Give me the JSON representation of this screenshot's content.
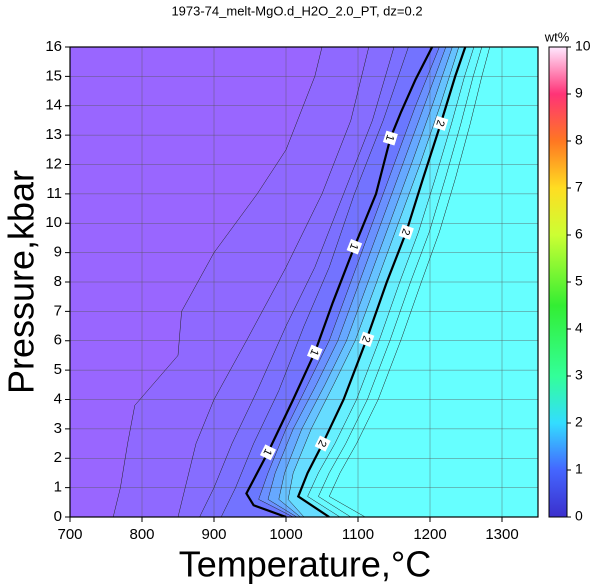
{
  "chart_data": {
    "type": "contour",
    "title": "1973-74_melt-MgO.d_H2O_2.0_PT, dz=0.2",
    "xlabel": "Temperature,°C",
    "ylabel": "Pressure,kbar",
    "xlim": [
      700,
      1350
    ],
    "ylim": [
      0,
      16
    ],
    "xticks": [
      700,
      800,
      900,
      1000,
      1100,
      1200,
      1300
    ],
    "yticks": [
      0,
      1,
      2,
      3,
      4,
      5,
      6,
      7,
      8,
      9,
      10,
      11,
      12,
      13,
      14,
      15,
      16
    ],
    "grid": true,
    "base_color": "#9966ff",
    "bold_levels": [
      1,
      2
    ],
    "contours": [
      {
        "level": 0.2,
        "color": "#8f69ff",
        "T": [
          760,
          770,
          780,
          790,
          850,
          855,
          900,
          960,
          1000,
          1040,
          1050
        ],
        "P": [
          0,
          1,
          2.5,
          3.8,
          5.5,
          7,
          9,
          11,
          12.5,
          15,
          16
        ]
      },
      {
        "level": 0.4,
        "color": "#866dff",
        "T": [
          850,
          860,
          875,
          900,
          945,
          1000,
          1050,
          1090,
          1115
        ],
        "P": [
          0,
          1,
          2.5,
          4,
          6,
          8.5,
          11,
          13.5,
          16
        ]
      },
      {
        "level": 0.6,
        "color": "#7c70ff",
        "T": [
          880,
          900,
          925,
          960,
          1000,
          1040,
          1080,
          1120,
          1150
        ],
        "P": [
          0,
          1,
          2.5,
          4.3,
          6.5,
          8.5,
          11,
          13.5,
          16
        ]
      },
      {
        "level": 0.8,
        "color": "#7373ff",
        "T": [
          910,
          930,
          955,
          990,
          1025,
          1060,
          1095,
          1135,
          1170
        ],
        "P": [
          0,
          1,
          2.5,
          4.3,
          6.5,
          8.5,
          11,
          13.5,
          16
        ]
      },
      {
        "level": 1,
        "color": "#6a78ff",
        "T": [
          1000,
          955,
          945,
          975,
          1010,
          1040,
          1065,
          1095,
          1125,
          1145,
          1160,
          1180,
          1203
        ],
        "P": [
          0,
          0.4,
          0.8,
          2.2,
          4,
          5.6,
          7.3,
          9.2,
          11,
          12.9,
          13.8,
          14.9,
          16
        ]
      },
      {
        "level": 1.2,
        "color": "#6a90ff",
        "T": [
          1010,
          962,
          975,
          1000,
          1030,
          1060,
          1090,
          1120,
          1150,
          1180,
          1213
        ],
        "P": [
          0,
          0.6,
          1.5,
          3,
          4.5,
          6,
          8,
          10,
          12,
          14,
          16
        ]
      },
      {
        "level": 1.4,
        "color": "#66a8ff",
        "T": [
          1015,
          975,
          985,
          1010,
          1042,
          1072,
          1102,
          1132,
          1162,
          1192,
          1222
        ],
        "P": [
          0,
          0.6,
          1.5,
          3,
          4.5,
          6,
          8,
          10,
          12,
          14,
          16
        ]
      },
      {
        "level": 1.6,
        "color": "#66c2ff",
        "T": [
          1020,
          990,
          998,
          1022,
          1054,
          1084,
          1114,
          1144,
          1174,
          1203,
          1231
        ],
        "P": [
          0,
          0.6,
          1.5,
          3,
          4.5,
          6,
          8,
          10,
          12,
          14,
          16
        ]
      },
      {
        "level": 1.8,
        "color": "#66dcff",
        "T": [
          1025,
          1003,
          1010,
          1035,
          1066,
          1096,
          1126,
          1156,
          1186,
          1214,
          1240
        ],
        "P": [
          0,
          0.6,
          1.5,
          3,
          4.5,
          6,
          8,
          10,
          12,
          14,
          16
        ]
      },
      {
        "level": 2,
        "color": "#66f0ff",
        "T": [
          1060,
          1017,
          1030,
          1051,
          1080,
          1112,
          1140,
          1167,
          1190,
          1215,
          1235,
          1249
        ],
        "P": [
          0,
          0.7,
          1.5,
          2.5,
          4,
          6.05,
          8,
          9.7,
          11.5,
          13.4,
          15,
          16
        ]
      },
      {
        "level": 2.2,
        "color": "#66faff",
        "T": [
          1075,
          1030,
          1045,
          1068,
          1098,
          1130,
          1158,
          1184,
          1207,
          1230,
          1248,
          1261
        ],
        "P": [
          0,
          0.7,
          1.5,
          2.5,
          4,
          6.05,
          8,
          9.7,
          11.5,
          13.4,
          15,
          16
        ]
      },
      {
        "level": 2.4,
        "color": "#66ffff",
        "T": [
          1090,
          1045,
          1060,
          1083,
          1113,
          1145,
          1173,
          1199,
          1221,
          1243,
          1260,
          1272
        ],
        "P": [
          0,
          0.7,
          1.5,
          2.5,
          4,
          6.05,
          8,
          9.7,
          11.5,
          13.4,
          15,
          16
        ]
      },
      {
        "level": 2.6,
        "color": "#66ffff",
        "T": [
          1110,
          1060,
          1075,
          1098,
          1128,
          1160,
          1188,
          1213,
          1235,
          1256,
          1272,
          1283
        ],
        "P": [
          0,
          0.7,
          1.5,
          2.5,
          4,
          6.05,
          8,
          9.7,
          11.5,
          13.4,
          15,
          16
        ]
      }
    ],
    "colorbar": {
      "label": "wt%",
      "lim": [
        0,
        10
      ],
      "ticks": [
        0,
        1,
        2,
        3,
        4,
        5,
        6,
        7,
        8,
        9,
        10
      ],
      "stops": [
        {
          "value": 0,
          "color": "#3b2fcc"
        },
        {
          "value": 1,
          "color": "#4466ff"
        },
        {
          "value": 2,
          "color": "#33ddff"
        },
        {
          "value": 3,
          "color": "#33ff99"
        },
        {
          "value": 4.5,
          "color": "#33ee33"
        },
        {
          "value": 6,
          "color": "#ccff33"
        },
        {
          "value": 7,
          "color": "#ffdd22"
        },
        {
          "value": 8,
          "color": "#ff7722"
        },
        {
          "value": 9,
          "color": "#ff3377"
        },
        {
          "value": 10,
          "color": "#ffe8ff"
        }
      ]
    }
  }
}
